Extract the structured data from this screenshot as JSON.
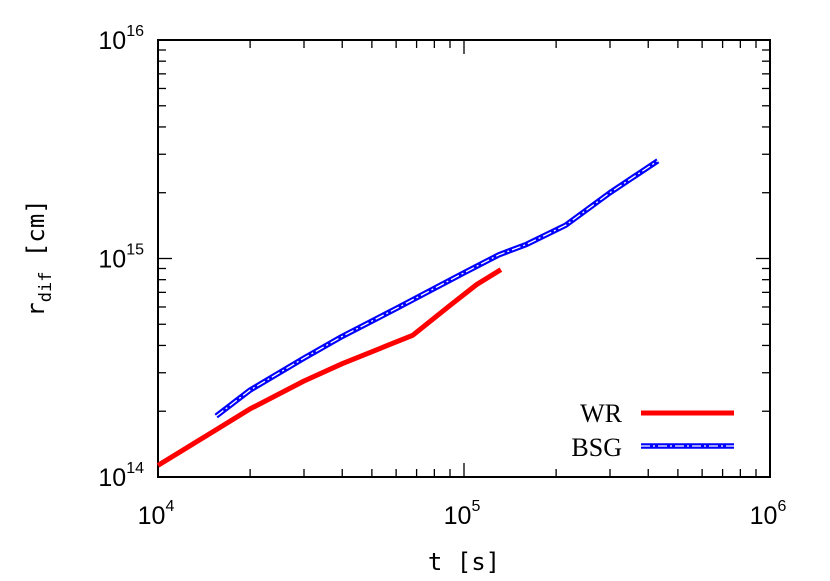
{
  "chart_data": {
    "type": "line",
    "xscale": "log",
    "yscale": "log",
    "xlim": [
      10000,
      1000000
    ],
    "ylim": [
      100000000000000.0,
      1e+16
    ],
    "grid": false,
    "legend_position": "bottom-right",
    "xlabel": "t [s]",
    "ylabel": {
      "base": "r",
      "subscript": "dif",
      "unit": " [cm]"
    },
    "x_ticks": [
      {
        "base": "10",
        "exp": "4",
        "value": 10000
      },
      {
        "base": "10",
        "exp": "5",
        "value": 100000
      },
      {
        "base": "10",
        "exp": "6",
        "value": 1000000
      }
    ],
    "y_ticks": [
      {
        "base": "10",
        "exp": "14",
        "value": 100000000000000.0
      },
      {
        "base": "10",
        "exp": "15",
        "value": 1000000000000000.0
      },
      {
        "base": "10",
        "exp": "16",
        "value": 1e+16
      }
    ],
    "series": [
      {
        "name": "WR",
        "color": "#ff0000",
        "style": "solid",
        "x": [
          10000,
          15000,
          20000,
          30000,
          40000,
          55000,
          68000,
          90000,
          110000,
          132000
        ],
        "y": [
          113000000000000.0,
          160000000000000.0,
          205000000000000.0,
          275000000000000.0,
          330000000000000.0,
          395000000000000.0,
          445000000000000.0,
          610000000000000.0,
          760000000000000.0,
          890000000000000.0
        ]
      },
      {
        "name": "BSG",
        "color": "#0000ff",
        "style": "dash-dot",
        "x": [
          15500,
          20000,
          30000,
          40000,
          60000,
          80000,
          100000,
          130000,
          160000,
          215000,
          300000,
          430000
        ],
        "y": [
          190000000000000.0,
          250000000000000.0,
          350000000000000.0,
          440000000000000.0,
          590000000000000.0,
          730000000000000.0,
          860000000000000.0,
          1040000000000000.0,
          1160000000000000.0,
          1420000000000000.0,
          2000000000000000.0,
          2800000000000000.0
        ]
      }
    ]
  }
}
